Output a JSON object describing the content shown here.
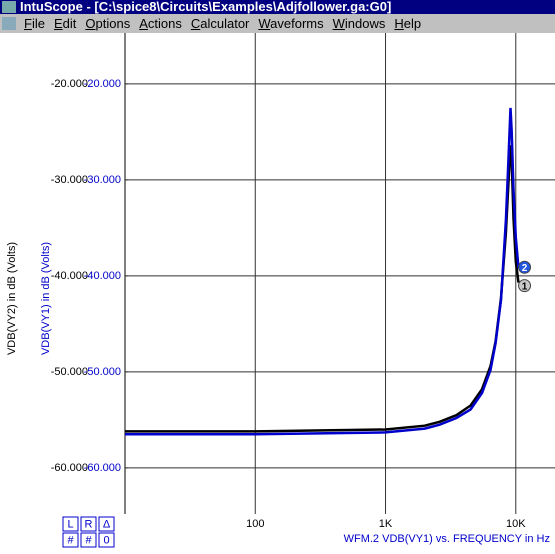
{
  "window_title": "IntuScope - [C:\\spice8\\Circuits\\Examples\\Adjfollower.ga:G0]",
  "menu": [
    "File",
    "Edit",
    "Options",
    "Actions",
    "Calculator",
    "Waveforms",
    "Windows",
    "Help"
  ],
  "cursor_buttons": [
    [
      "L",
      "R",
      "Δ"
    ],
    [
      "#",
      "#",
      "0"
    ]
  ],
  "status": "WFM.2   VDB(VY1) vs. FREQUENCY in Hz",
  "chart_data": {
    "type": "line",
    "ylabel": "VDB(VY2) in dB (Volts)",
    "y2label": "VDB(VY1) in dB (Volts)",
    "x": [
      10,
      100,
      1000,
      2000,
      2600,
      3500,
      4500,
      5500,
      6400,
      7000,
      7700,
      8400,
      8800,
      9100,
      9300,
      9600,
      10000,
      10500
    ],
    "series": [
      {
        "name": "VDB(VY2)",
        "color": "#000000",
        "axis": "y",
        "marker": "1",
        "values": [
          -56.2,
          -56.2,
          -56.0,
          -55.6,
          -55.2,
          -54.5,
          -53.5,
          -51.8,
          -49.4,
          -46.8,
          -42.3,
          -35.5,
          -30.0,
          -26.4,
          -28.0,
          -34.0,
          -38.5,
          -40.7
        ]
      },
      {
        "name": "VDB(VY1)",
        "color": "#0000cc",
        "axis": "y2",
        "marker": "2",
        "values": [
          -56.5,
          -56.5,
          -56.3,
          -55.9,
          -55.5,
          -54.8,
          -53.9,
          -52.2,
          -49.8,
          -47.0,
          -42.5,
          -34.2,
          -27.5,
          -22.5,
          -25.0,
          -31.0,
          -36.0,
          -39.2
        ]
      }
    ],
    "xscale": "log",
    "xlim": [
      10,
      20000
    ],
    "xticks": [
      100,
      {
        "value": 1000,
        "label": "1K"
      },
      {
        "value": 10000,
        "label": "10K"
      }
    ],
    "ylim": [
      -64.8,
      -14.7
    ],
    "yticks": [
      {
        "value": -20,
        "label": "-20.000"
      },
      {
        "value": -30,
        "label": "-30.000"
      },
      {
        "value": -40,
        "label": "-40.000"
      },
      {
        "value": -50,
        "label": "-50.000"
      },
      {
        "value": -60,
        "label": "-60.000"
      }
    ],
    "y2lim": [
      -64.8,
      -14.7
    ],
    "y2ticks": [
      {
        "value": -20,
        "label": "-20.000"
      },
      {
        "value": -30,
        "label": "-30.000"
      },
      {
        "value": -40,
        "label": "-40.000"
      },
      {
        "value": -50,
        "label": "-50.000"
      },
      {
        "value": -60,
        "label": "-60.000"
      }
    ],
    "grid": true
  }
}
